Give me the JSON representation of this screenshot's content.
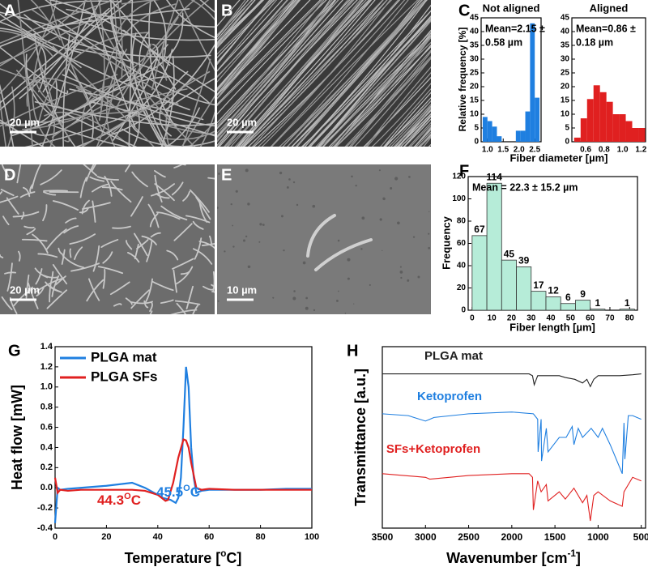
{
  "panels": [
    {
      "label": "A",
      "scale": "20 µm"
    },
    {
      "label": "B",
      "scale": "20 µm"
    },
    {
      "label": "D",
      "scale": "20 µm"
    },
    {
      "label": "E",
      "scale": "10 µm"
    }
  ],
  "chart_data": [
    {
      "type": "histogram",
      "panel": "C",
      "title": "Not aligned",
      "annotation": [
        "Mean=2.15 ±",
        "0.58 µm"
      ],
      "ylabel": "Relative frequency [%]",
      "xlabel": "Fiber diameter [µm]",
      "color": "#1f7fe0",
      "bins": [
        0.85,
        1.0,
        1.15,
        1.3,
        1.45,
        1.6,
        1.75,
        1.9,
        2.05,
        2.2,
        2.35,
        2.5,
        2.65
      ],
      "values": [
        9,
        7.5,
        5.5,
        2,
        0,
        0,
        0,
        4,
        4,
        11,
        43,
        16
      ],
      "xlim": [
        0.8,
        2.7
      ],
      "xticks": [
        {
          "value": 1,
          "label": "1.0"
        },
        1.5,
        {
          "value": 2,
          "label": "2.0"
        },
        2.5
      ],
      "ylim": [
        0,
        45
      ],
      "yticks": [
        0,
        5,
        10,
        15,
        20,
        25,
        30,
        35,
        40,
        45
      ]
    },
    {
      "type": "histogram",
      "title": "Aligned",
      "annotation": [
        "Mean=0.86 ±",
        "0.18 µm"
      ],
      "color": "#e02020",
      "bins": [
        0.475,
        0.545,
        0.615,
        0.685,
        0.755,
        0.825,
        0.895,
        0.965,
        1.035,
        1.105,
        1.175,
        1.245
      ],
      "values": [
        1.5,
        8.5,
        15.5,
        20.5,
        18,
        14.5,
        10,
        10,
        7.5,
        5,
        5
      ],
      "xlim": [
        0.45,
        1.25
      ],
      "xticks": [
        0.6,
        0.8,
        {
          "value": 1,
          "label": "1.0"
        },
        1.2
      ],
      "ylim": [
        0,
        45
      ],
      "yticks": [
        0,
        5,
        10,
        15,
        20,
        25,
        30,
        35,
        40,
        45
      ]
    },
    {
      "type": "histogram",
      "panel": "F",
      "annotation": [
        "Mean = 22.3 ± 15.2 µm"
      ],
      "ylabel": "Frequency",
      "xlabel": "Fiber length [µm]",
      "color": "#b6ecd8",
      "bins": [
        0,
        7.5,
        15,
        22.5,
        30,
        37.5,
        45,
        52.5,
        60,
        67.5,
        75,
        82.5
      ],
      "values": [
        67,
        114,
        45,
        39,
        17,
        12,
        6,
        9,
        1,
        0,
        1
      ],
      "value_labels": [
        "67",
        "114",
        "45",
        "39",
        "17",
        "12",
        "6",
        "9",
        "1",
        null,
        "1"
      ],
      "xlim": [
        -2,
        84
      ],
      "xticks": [
        0,
        10,
        20,
        30,
        40,
        50,
        60,
        70,
        80
      ],
      "ylim": [
        0,
        120
      ],
      "yticks": [
        0,
        20,
        40,
        60,
        80,
        100,
        120
      ]
    },
    {
      "type": "line",
      "panel": "G",
      "ylabel": "Heat flow [mW]",
      "xlabel": [
        {
          "t": "Temperature ["
        },
        {
          "t": "o",
          "sup": true
        },
        {
          "t": "C]"
        }
      ],
      "legend": "upper left",
      "annotations": [
        [
          {
            "t": "44.3"
          },
          {
            "t": "O",
            "sup": true
          },
          {
            "t": "C"
          }
        ],
        [
          {
            "t": "45.5"
          },
          {
            "t": "O",
            "sup": true
          },
          {
            "t": "C"
          }
        ]
      ],
      "series": [
        {
          "name": "PLGA mat",
          "color": "#1f7fe0",
          "x": [
            0,
            1,
            2,
            5,
            10,
            20,
            30,
            35,
            40,
            42,
            45,
            47,
            48,
            49,
            50,
            51,
            52,
            53,
            54,
            55,
            57,
            60,
            70,
            80,
            90,
            100
          ],
          "values": [
            -0.35,
            0,
            -0.02,
            -0.01,
            0,
            0.02,
            0.05,
            0,
            -0.07,
            -0.1,
            -0.12,
            -0.15,
            -0.1,
            0.1,
            0.6,
            1.2,
            1.0,
            0.4,
            0.1,
            -0.05,
            -0.03,
            -0.02,
            -0.02,
            -0.02,
            -0.01,
            -0.01
          ]
        },
        {
          "name": "PLGA SFs",
          "color": "#e02020",
          "x": [
            0,
            1,
            2,
            5,
            10,
            20,
            30,
            35,
            40,
            43,
            44,
            46,
            48,
            50,
            51,
            52,
            53,
            55,
            57,
            60,
            70,
            80,
            90,
            100
          ],
          "values": [
            0.1,
            -0.05,
            -0.02,
            -0.03,
            -0.02,
            -0.02,
            -0.02,
            -0.03,
            -0.07,
            -0.13,
            -0.12,
            0.05,
            0.3,
            0.48,
            0.47,
            0.4,
            0.25,
            0,
            -0.02,
            -0.01,
            -0.02,
            -0.02,
            -0.02,
            -0.02
          ]
        }
      ],
      "xlim": [
        0,
        100
      ],
      "xticks": [
        0,
        20,
        40,
        60,
        80,
        100
      ],
      "ylim": [
        -0.4,
        1.4
      ],
      "yticks": [
        -0.4,
        -0.2,
        {
          "value": 0,
          "label": "0.0"
        },
        0.2,
        0.4,
        0.6,
        0.8,
        {
          "value": 1,
          "label": "1.0"
        },
        1.2,
        1.4
      ]
    },
    {
      "type": "line",
      "panel": "H",
      "ylabel": "Transmittance [a.u.]",
      "xlabel": [
        {
          "t": "Wavenumber [cm"
        },
        {
          "t": "-1",
          "sup": true
        },
        {
          "t": "]"
        }
      ],
      "legend": "inline",
      "series": [
        {
          "name": "PLGA mat",
          "color": "#222222",
          "x": [
            3500,
            3000,
            2000,
            1800,
            1760,
            1740,
            1700,
            1450,
            1380,
            1270,
            1180,
            1130,
            1090,
            1050,
            1000,
            900,
            750,
            600,
            500
          ],
          "values": [
            0.85,
            0.85,
            0.85,
            0.85,
            0.84,
            0.79,
            0.84,
            0.84,
            0.83,
            0.82,
            0.8,
            0.82,
            0.78,
            0.82,
            0.84,
            0.84,
            0.84,
            0.845,
            0.85
          ]
        },
        {
          "name": "Ketoprofen",
          "color": "#1f7fe0",
          "x": [
            3500,
            3200,
            3000,
            2950,
            2900,
            2500,
            2000,
            1750,
            1700,
            1695,
            1660,
            1655,
            1600,
            1580,
            1450,
            1370,
            1300,
            1280,
            1230,
            1180,
            1080,
            1000,
            950,
            860,
            720,
            700,
            690,
            650,
            600,
            500
          ],
          "values": [
            0.63,
            0.62,
            0.59,
            0.6,
            0.61,
            0.63,
            0.64,
            0.63,
            0.6,
            0.42,
            0.6,
            0.37,
            0.55,
            0.42,
            0.5,
            0.5,
            0.56,
            0.46,
            0.55,
            0.5,
            0.55,
            0.5,
            0.55,
            0.46,
            0.3,
            0.58,
            0.38,
            0.62,
            0.62,
            0.6
          ]
        },
        {
          "name": "SFs+Ketoprofen",
          "color": "#e02020",
          "x": [
            3500,
            3000,
            2950,
            2500,
            2000,
            1800,
            1760,
            1750,
            1700,
            1660,
            1600,
            1580,
            1450,
            1380,
            1280,
            1180,
            1130,
            1090,
            1050,
            1000,
            860,
            720,
            700,
            600,
            500
          ],
          "values": [
            0.3,
            0.28,
            0.27,
            0.29,
            0.3,
            0.3,
            0.28,
            0.1,
            0.26,
            0.2,
            0.24,
            0.15,
            0.2,
            0.16,
            0.22,
            0.14,
            0.18,
            0.04,
            0.18,
            0.2,
            0.15,
            0.12,
            0.2,
            0.28,
            0.26
          ]
        }
      ],
      "xlim": [
        3500,
        450
      ],
      "xticks": [
        3500,
        3000,
        2500,
        2000,
        1500,
        1000,
        500
      ],
      "ylim": [
        0,
        1
      ]
    }
  ]
}
